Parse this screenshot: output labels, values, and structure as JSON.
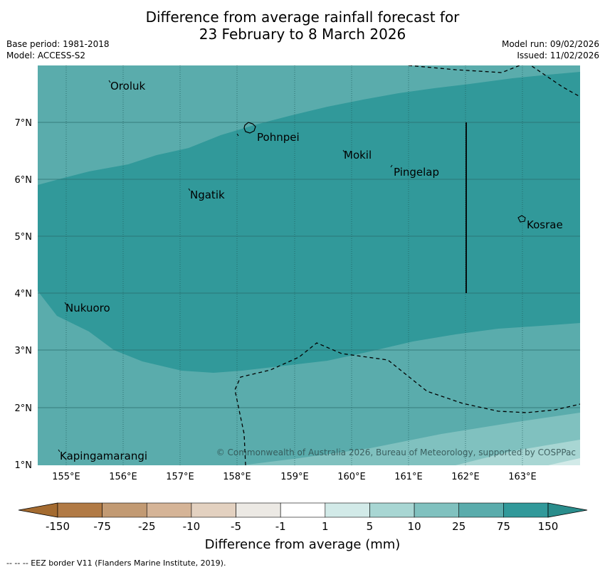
{
  "header": {
    "title_line1": "Difference from average rainfall forecast for",
    "title_line2": "23 February to 8 March 2026",
    "base_period": "Base period: 1981-2018",
    "model": "Model: ACCESS-S2",
    "model_run": "Model run: 09/02/2026",
    "issued": "Issued: 11/02/2026"
  },
  "map": {
    "lon_labels": [
      "155°E",
      "156°E",
      "157°E",
      "158°E",
      "159°E",
      "160°E",
      "161°E",
      "162°E",
      "163°E"
    ],
    "lat_labels": [
      "7°N",
      "6°N",
      "5°N",
      "4°N",
      "3°N",
      "2°N",
      "1°N"
    ],
    "places": {
      "oroluk": "Oroluk",
      "pohnpei": "Pohnpei",
      "mokil": "Mokil",
      "pingelap": "Pingelap",
      "ngatik": "Ngatik",
      "kosrae": "Kosrae",
      "nukuoro": "Nukuoro",
      "kapingamarangi": "Kapingamarangi"
    },
    "copyright": "© Commonwealth of Australia 2026, Bureau of Meteorology, supported by COSPPac",
    "colors": {
      "band_25_75": "#5aacac",
      "band_75_150": "#31999a",
      "band_10_25": "#80c1bf",
      "band_5_10": "#a8d6d3",
      "band_1_5": "#d2eae8"
    }
  },
  "colorbar": {
    "labels": [
      "-150",
      "-75",
      "-25",
      "-10",
      "-5",
      "-1",
      "1",
      "5",
      "10",
      "25",
      "75",
      "150"
    ],
    "colors": [
      "#a46b30",
      "#b17a45",
      "#c29a73",
      "#d5b497",
      "#e3d1c0",
      "#ece9e4",
      "#ffffff",
      "#d2eae8",
      "#a8d6d3",
      "#80c1bf",
      "#5aacac",
      "#31999a",
      "#2a8d8c"
    ],
    "title": "Difference from average (mm)"
  },
  "footnote": "--  --  -- EEZ border V11 (Flanders Marine Institute, 2019)."
}
